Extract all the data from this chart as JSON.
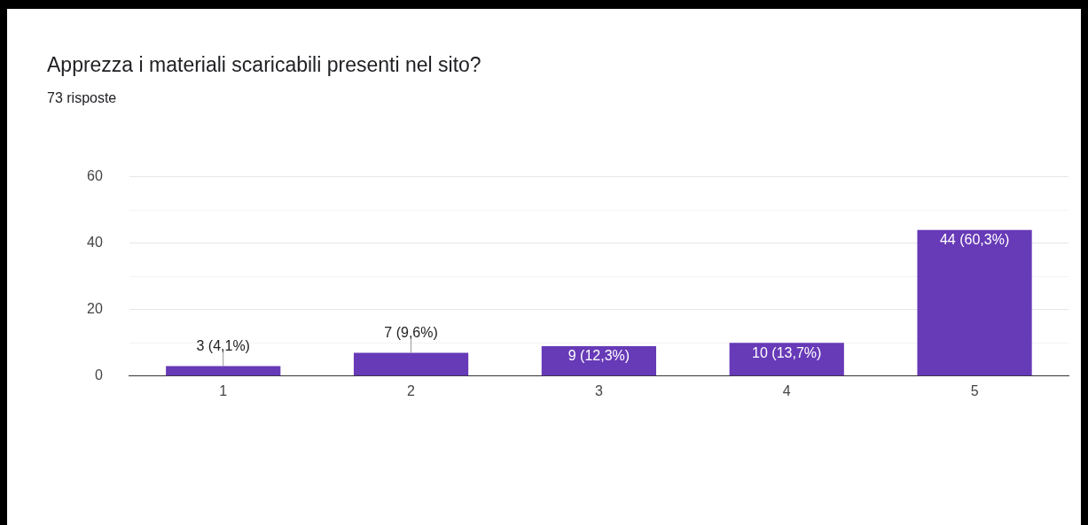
{
  "chart_data": {
    "type": "bar",
    "title": "Apprezza i materiali scaricabili presenti nel sito?",
    "subtitle": "73 risposte",
    "categories": [
      "1",
      "2",
      "3",
      "4",
      "5"
    ],
    "values": [
      3,
      7,
      9,
      10,
      44
    ],
    "value_labels": [
      "3 (4,1%)",
      "7 (9,6%)",
      "9 (12,3%)",
      "10 (13,7%)",
      "44 (60,3%)"
    ],
    "color": "#673ab7",
    "ylim": [
      0,
      60
    ],
    "yticks": [
      0,
      {
        "value": 10,
        "label": null
      },
      20,
      {
        "value": 30,
        "label": null
      },
      40,
      {
        "value": 50,
        "label": null
      },
      60
    ],
    "grid": "y",
    "legend": false
  }
}
